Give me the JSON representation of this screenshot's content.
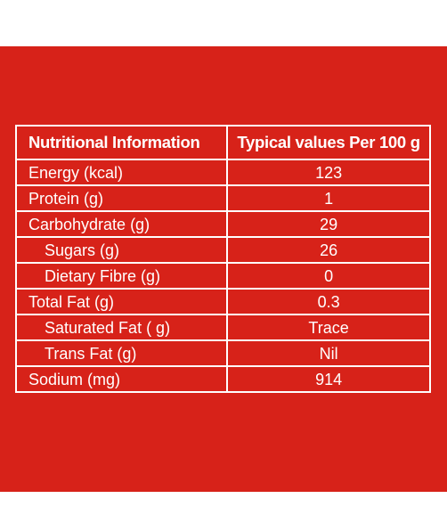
{
  "table": {
    "headers": [
      "Nutritional Information",
      "Typical values Per 100 g"
    ],
    "rows": [
      {
        "name": "Energy (kcal)",
        "value": "123"
      },
      {
        "name": "Protein (g)",
        "value": "1"
      },
      {
        "name": "Carbohydrate (g)",
        "value": "29"
      },
      {
        "name": "Sugars (g)",
        "value": "26"
      },
      {
        "name": "Dietary Fibre (g)",
        "value": "0"
      },
      {
        "name": "Total Fat (g)",
        "value": "0.3"
      },
      {
        "name": "Saturated Fat ( g)",
        "value": "Trace"
      },
      {
        "name": "Trans Fat (g)",
        "value": "Nil"
      },
      {
        "name": "Sodium (mg)",
        "value": "914"
      }
    ]
  },
  "colors": {
    "background": "#d72219",
    "text": "#ffffff",
    "page": "#ffffff"
  }
}
